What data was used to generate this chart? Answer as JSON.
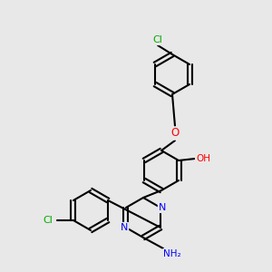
{
  "bg_color": "#e8e8e8",
  "bond_color": "#000000",
  "bond_lw": 1.5,
  "atom_colors": {
    "N": "#0000ff",
    "O": "#ff0000",
    "Cl": "#00aa00",
    "H": "#888888",
    "C": "#000000"
  },
  "font_size": 7.5
}
